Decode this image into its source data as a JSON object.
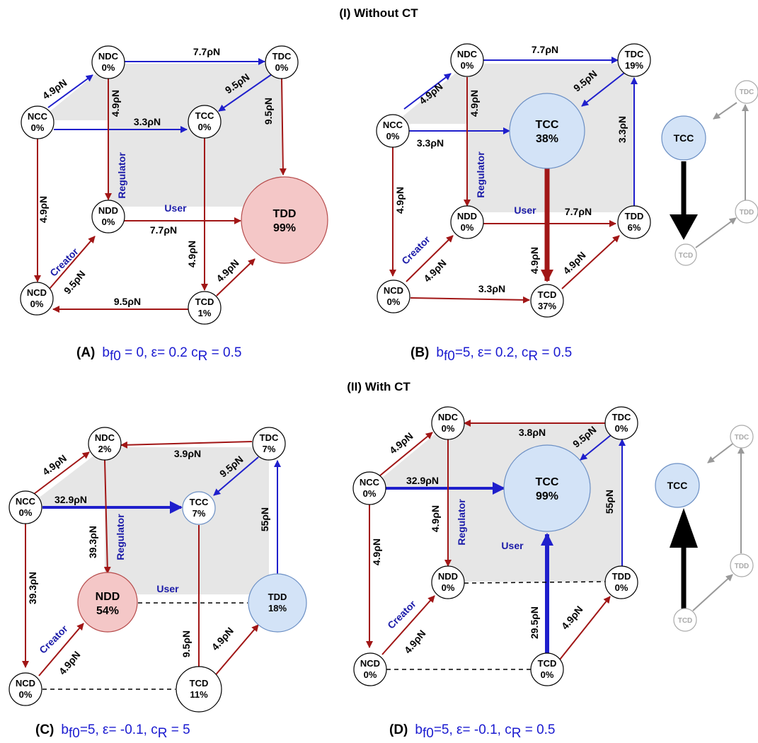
{
  "titles": {
    "without_ct": "(I) Without CT",
    "with_ct": "(II) With CT"
  },
  "colors": {
    "red": "#a11616",
    "blue": "#1f1fcc",
    "gray_fill": "#e6e6e6",
    "pink_fill": "#f4c7c7",
    "lightblue_fill": "#d3e3f7"
  },
  "axes": {
    "regulator": "Regulator",
    "user": "User",
    "creator": "Creator"
  },
  "panels": {
    "A": {
      "caption_letter": "(A)",
      "caption_text": "b",
      "caption_sub": "f0",
      "caption_rest": " = 0, ε= 0.2 c",
      "caption_sub2": "R",
      "caption_end": " = 0.5",
      "nodes": {
        "NCC": {
          "name": "NCC",
          "pct": "0%"
        },
        "NDC": {
          "name": "NDC",
          "pct": "0%"
        },
        "TDC": {
          "name": "TDC",
          "pct": "0%"
        },
        "TCC": {
          "name": "TCC",
          "pct": "0%"
        },
        "NDD": {
          "name": "NDD",
          "pct": "0%"
        },
        "TDD": {
          "name": "TDD",
          "pct": "99%"
        },
        "NCD": {
          "name": "NCD",
          "pct": "0%"
        },
        "TCD": {
          "name": "TCD",
          "pct": "1%"
        }
      },
      "edges": {
        "ncc_ndc": "4.9ρN",
        "ndc_tdc": "7.7ρN",
        "tdc_tcc": "9.5ρN",
        "ncc_tcc": "3.3ρN",
        "ndc_ndd": "4.9ρN",
        "tdc_tdd": "9.5ρN",
        "ncc_ncd": "4.9ρN",
        "ndd_tdd": "7.7ρN",
        "tcc_tcd": "4.9ρN",
        "tcd_tdd": "4.9ρN",
        "ncd_ndd": "9.5ρN",
        "tcd_ncd": "9.5ρN"
      }
    },
    "B": {
      "caption_letter": "(B)",
      "caption_text": "b",
      "caption_sub": "f0",
      "caption_rest": "=5, ε= 0.2, c",
      "caption_sub2": "R",
      "caption_end": " = 0.5",
      "nodes": {
        "NCC": {
          "name": "NCC",
          "pct": "0%"
        },
        "NDC": {
          "name": "NDC",
          "pct": "0%"
        },
        "TDC": {
          "name": "TDC",
          "pct": "19%"
        },
        "TCC": {
          "name": "TCC",
          "pct": "38%"
        },
        "NDD": {
          "name": "NDD",
          "pct": "0%"
        },
        "TDD": {
          "name": "TDD",
          "pct": "6%"
        },
        "NCD": {
          "name": "NCD",
          "pct": "0%"
        },
        "TCD": {
          "name": "TCD",
          "pct": "37%"
        }
      },
      "edges": {
        "ncc_ndc": "4.9ρN",
        "ndc_tdc": "7.7ρN",
        "tdc_tcc": "9.5ρN",
        "ncc_tcc": "3.3ρN",
        "ndc_ndd": "4.9ρN",
        "tdd_tdc": "3.3ρN",
        "ncc_ncd": "4.9ρN",
        "ndd_tdd": "7.7ρN",
        "tcc_tcd": "4.9ρN",
        "tcd_tdd": "4.9ρN",
        "ncd_ndd": "4.9ρN",
        "ncd_tcd": "3.3ρN"
      }
    },
    "C": {
      "caption_letter": "(C)",
      "caption_text": "b",
      "caption_sub": "f0",
      "caption_rest": "=5, ε= -0.1, c",
      "caption_sub2": "R",
      "caption_end": " = 5",
      "nodes": {
        "NCC": {
          "name": "NCC",
          "pct": "0%"
        },
        "NDC": {
          "name": "NDC",
          "pct": "2%"
        },
        "TDC": {
          "name": "TDC",
          "pct": "7%"
        },
        "TCC": {
          "name": "TCC",
          "pct": "7%"
        },
        "NDD": {
          "name": "NDD",
          "pct": "54%"
        },
        "TDD": {
          "name": "TDD",
          "pct": "18%"
        },
        "NCD": {
          "name": "NCD",
          "pct": "0%"
        },
        "TCD": {
          "name": "TCD",
          "pct": "11%"
        }
      },
      "edges": {
        "ncc_ndc": "4.9ρN",
        "tdc_ndc": "3.9ρN",
        "tdc_tcc": "9.5ρN",
        "ncc_tcc": "32.9ρN",
        "ndc_ndd": "39.3ρN",
        "tdd_tdc": "55ρN",
        "ncc_ncd": "39.3ρN",
        "tcc_tcd": "9.5ρN",
        "tcd_tdd": "4.9ρN",
        "ncd_ndd": "4.9ρN"
      }
    },
    "D": {
      "caption_letter": "(D)",
      "caption_text": "b",
      "caption_sub": "f0",
      "caption_rest": "=5, ε= -0.1, c",
      "caption_sub2": "R",
      "caption_end": " = 0.5",
      "nodes": {
        "NCC": {
          "name": "NCC",
          "pct": "0%"
        },
        "NDC": {
          "name": "NDC",
          "pct": "0%"
        },
        "TDC": {
          "name": "TDC",
          "pct": "0%"
        },
        "TCC": {
          "name": "TCC",
          "pct": "99%"
        },
        "NDD": {
          "name": "NDD",
          "pct": "0%"
        },
        "TDD": {
          "name": "TDD",
          "pct": "0%"
        },
        "NCD": {
          "name": "NCD",
          "pct": "0%"
        },
        "TCD": {
          "name": "TCD",
          "pct": "0%"
        }
      },
      "edges": {
        "ncc_ndc": "4.9ρN",
        "tdc_ndc": "3.8ρN",
        "tdc_tcc": "9.5ρN",
        "ncc_tcc": "32.9ρN",
        "ndc_ndd": "4.9ρN",
        "tdd_tdc": "55ρN",
        "ncc_ncd": "4.9ρN",
        "tcd_tcc": "29.5ρN",
        "tcd_tdd": "4.9ρN",
        "ncd_ndd": "4.9ρN"
      }
    }
  },
  "mini": {
    "top": {
      "TCC": "TCC",
      "TDC": "TDC",
      "TDD": "TDD",
      "TCD": "TCD"
    },
    "bottom": {
      "TCC": "TCC",
      "TDC": "TDC",
      "TDD": "TDD",
      "TCD": "TCD"
    }
  }
}
